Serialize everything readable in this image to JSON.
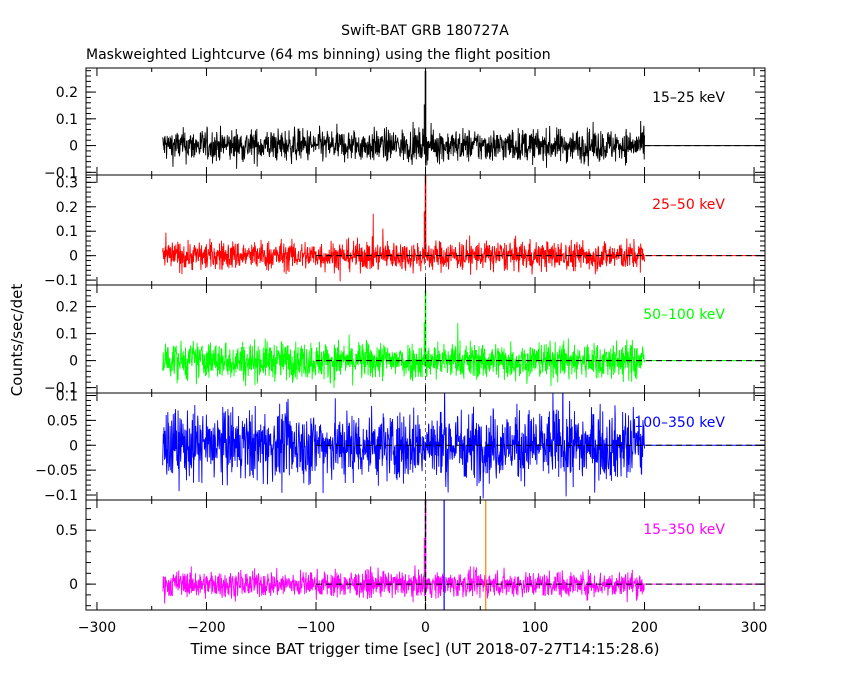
{
  "chart_data": {
    "type": "line",
    "title": "Swift-BAT GRB 180727A",
    "subtitle": "Maskweighted Lightcurve (64 ms binning) using the flight position",
    "xlabel": "Time since BAT trigger time [sec] (UT 2018-07-27T14:15:28.6)",
    "ylabel": "Counts/sec/det",
    "xlim": [
      -310,
      310
    ],
    "x_ticks": [
      -300,
      -200,
      -100,
      0,
      100,
      200,
      300
    ],
    "x_tick_labels": [
      "−300",
      "−200",
      "−100",
      "0",
      "100",
      "200",
      "300"
    ],
    "data_x_range": [
      -240,
      200
    ],
    "trigger_time": 0,
    "grid": false,
    "panels": [
      {
        "band": "15–25 keV",
        "color": "#000000",
        "ylim": [
          -0.11,
          0.29
        ],
        "y_ticks": [
          -0.1,
          0,
          0.1,
          0.2
        ],
        "y_tick_labels": [
          "−0.1",
          "0",
          "0.1",
          "0.2"
        ],
        "noise_amplitude": 0.03,
        "peak": {
          "x": 0,
          "y": 0.28
        },
        "baseline_dashed_from": 200
      },
      {
        "band": "25–50 keV",
        "color": "#ff0000",
        "ylim": [
          -0.12,
          0.33
        ],
        "y_ticks": [
          -0.1,
          0,
          0.1,
          0.2,
          0.3
        ],
        "y_tick_labels": [
          "−0.1",
          "0",
          "0.1",
          "0.2",
          "0.3"
        ],
        "noise_amplitude": 0.03,
        "peak": {
          "x": 0,
          "y": 0.33
        },
        "baseline_dashed_from": -100
      },
      {
        "band": "50–100 keV",
        "color": "#00ff00",
        "ylim": [
          -0.12,
          0.28
        ],
        "y_ticks": [
          -0.1,
          0,
          0.1,
          0.2
        ],
        "y_tick_labels": [
          "−0.1",
          "0",
          "0.1",
          "0.2"
        ],
        "noise_amplitude": 0.035,
        "peak": {
          "x": 0,
          "y": 0.26
        },
        "baseline_dashed_from": -100
      },
      {
        "band": "100–350 keV",
        "color": "#0000ff",
        "ylim": [
          -0.11,
          0.105
        ],
        "y_ticks": [
          -0.1,
          -0.05,
          0,
          0.05,
          0.1
        ],
        "y_tick_labels": [
          "−0.1",
          "−0.05",
          "0",
          "0.05",
          "0.1"
        ],
        "noise_amplitude": 0.035,
        "peak": null,
        "baseline_dashed_from": -100
      },
      {
        "band": "15–350 keV",
        "color": "#ff00ff",
        "ylim": [
          -0.24,
          0.78
        ],
        "y_ticks": [
          0,
          0.5
        ],
        "y_tick_labels": [
          "0",
          "0.5"
        ],
        "noise_amplitude": 0.06,
        "peak": {
          "x": 0,
          "y": 0.78
        },
        "baseline_dashed_from": -100,
        "markers": [
          {
            "x": 0,
            "color": "#00aa00",
            "style": "dashed"
          },
          {
            "x": 0,
            "color": "#000000",
            "style": "dashed"
          },
          {
            "x": 17,
            "color": "#0000ff",
            "style": "solid"
          },
          {
            "x": 55,
            "color": "#ff8000",
            "style": "solid"
          }
        ]
      }
    ]
  }
}
